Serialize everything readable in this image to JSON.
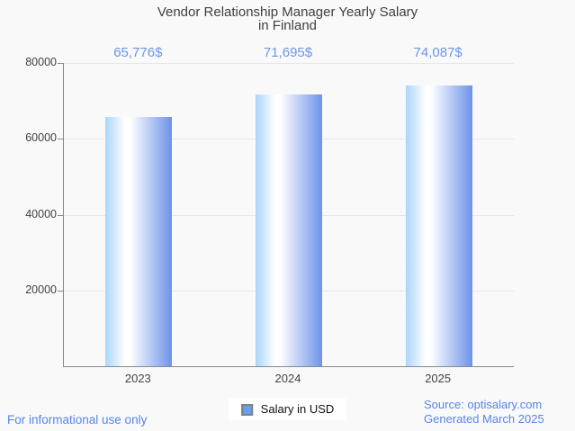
{
  "title": {
    "line1": "Vendor Relationship Manager Yearly Salary",
    "line2": "in Finland"
  },
  "legend": {
    "label": "Salary in USD"
  },
  "footer": {
    "disclaimer": "For informational use only",
    "source": "Source: optisalary.com",
    "generated": "Generated March 2025"
  },
  "colors": {
    "value_label": "#6b96e8",
    "footer_text": "#5585ec",
    "title_text": "#3f3f3f",
    "axis_text": "#424242",
    "axis_line": "#8a8a8a",
    "gridline": "#e6e6e6",
    "bar_left": "#abd5fb",
    "bar_mid": "#ffffff",
    "bar_right": "#6d93e9",
    "legend_swatch_fill": "#66a0f2",
    "legend_swatch_border": "#808080"
  },
  "chart_data": {
    "type": "bar",
    "title": "Vendor Relationship Manager Yearly Salary in Finland",
    "categories": [
      "2023",
      "2024",
      "2025"
    ],
    "series": [
      {
        "name": "Salary in USD",
        "values": [
          65776,
          71695,
          74087
        ]
      }
    ],
    "value_labels": [
      "65,776$",
      "71,695$",
      "74,087$"
    ],
    "xlabel": "",
    "ylabel": "",
    "ylim": [
      0,
      80000
    ],
    "y_ticks": [
      80000,
      60000,
      40000,
      20000
    ],
    "grid": true,
    "legend_position": "bottom"
  }
}
